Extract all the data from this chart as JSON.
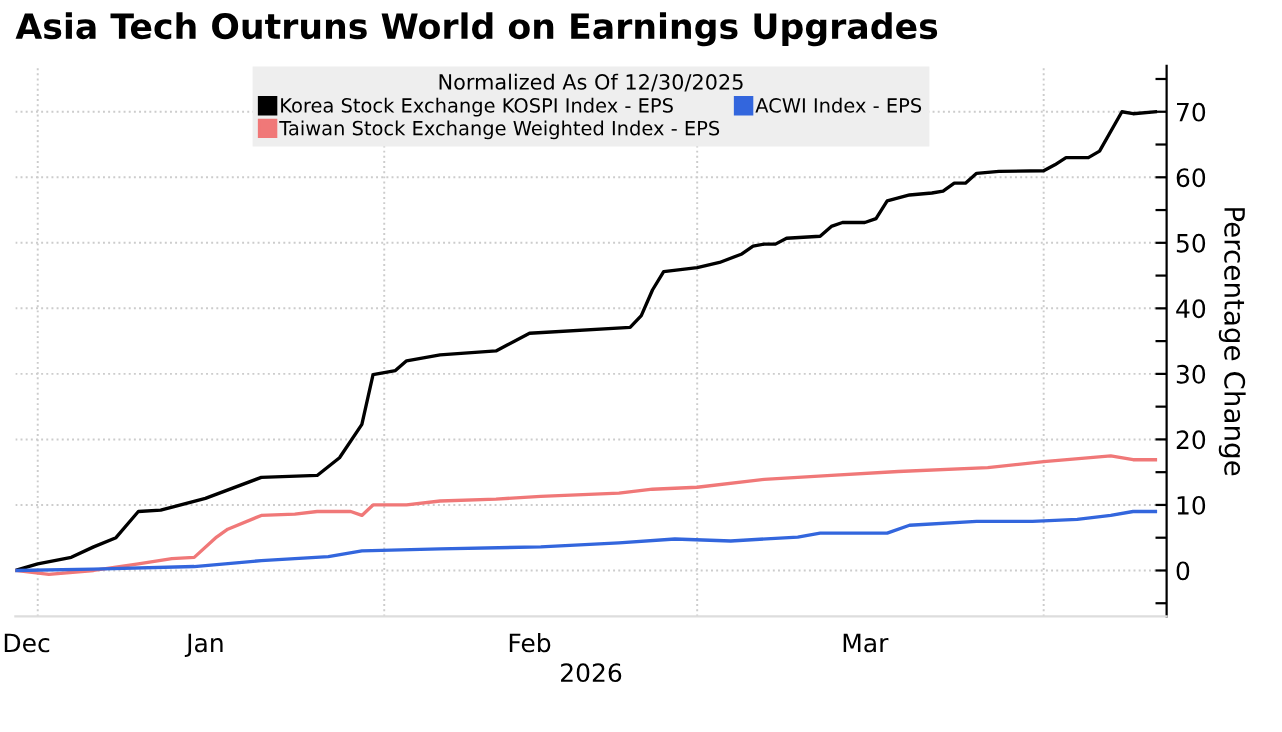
{
  "chart_data": {
    "type": "line",
    "title": "Asia Tech Outruns World on Earnings Upgrades",
    "legend_title": "Normalized As Of 12/30/2025",
    "xlabel": "2026",
    "ylabel": "Percentage Change",
    "series": [
      {
        "name": "Korea Stock Exchange KOSPI Index - EPS",
        "color": "#000000",
        "x": [
          "2025-12-30",
          "2026-01-01",
          "2026-01-04",
          "2026-01-06",
          "2026-01-08",
          "2026-01-10",
          "2026-01-12",
          "2026-01-16",
          "2026-01-21",
          "2026-01-26",
          "2026-01-28",
          "2026-01-30",
          "2026-01-31",
          "2026-02-02",
          "2026-02-03",
          "2026-02-06",
          "2026-02-11",
          "2026-02-12",
          "2026-02-14",
          "2026-02-23",
          "2026-02-24",
          "2026-02-25",
          "2026-02-26",
          "2026-03-01",
          "2026-03-03",
          "2026-03-05",
          "2026-03-06",
          "2026-03-07",
          "2026-03-08",
          "2026-03-09",
          "2026-03-12",
          "2026-03-13",
          "2026-03-14",
          "2026-03-16",
          "2026-03-17",
          "2026-03-18",
          "2026-03-20",
          "2026-03-22",
          "2026-03-23",
          "2026-03-24",
          "2026-03-25",
          "2026-03-26",
          "2026-03-28",
          "2026-04-01",
          "2026-04-02",
          "2026-04-03",
          "2026-04-05",
          "2026-04-06",
          "2026-04-08",
          "2026-04-09",
          "2026-04-11"
        ],
        "values": [
          0,
          1,
          2,
          3.6,
          5,
          9,
          9.2,
          11,
          14.2,
          14.5,
          17.2,
          22.3,
          29.9,
          30.5,
          32,
          32.9,
          33.5,
          34.4,
          36.2,
          37.1,
          38.9,
          42.8,
          45.6,
          46.2,
          47,
          48.3,
          49.5,
          49.8,
          49.8,
          50.7,
          51,
          52.5,
          53.1,
          53.1,
          53.7,
          56.4,
          57.3,
          57.6,
          57.9,
          59.1,
          59.1,
          60.6,
          60.9,
          61,
          61.9,
          63,
          63,
          64,
          70,
          69.7,
          70
        ]
      },
      {
        "name": "Taiwan Stock Exchange Weighted Index - EPS",
        "color": "#f07878",
        "x": [
          "2025-12-30",
          "2026-01-02",
          "2026-01-06",
          "2026-01-10",
          "2026-01-13",
          "2026-01-15",
          "2026-01-17",
          "2026-01-18",
          "2026-01-21",
          "2026-01-24",
          "2026-01-26",
          "2026-01-29",
          "2026-01-30",
          "2026-01-31",
          "2026-02-03",
          "2026-02-06",
          "2026-02-11",
          "2026-02-15",
          "2026-02-22",
          "2026-02-25",
          "2026-03-01",
          "2026-03-07",
          "2026-03-13",
          "2026-03-19",
          "2026-03-27",
          "2026-04-01",
          "2026-04-07",
          "2026-04-09",
          "2026-04-11"
        ],
        "values": [
          0,
          -0.6,
          0,
          1,
          1.8,
          2,
          5.1,
          6.3,
          8.4,
          8.6,
          9,
          9,
          8.4,
          10,
          10,
          10.6,
          10.9,
          11.3,
          11.8,
          12.4,
          12.7,
          13.9,
          14.5,
          15.1,
          15.7,
          16.6,
          17.5,
          16.9,
          16.9
        ]
      },
      {
        "name": "ACWI Index - EPS",
        "color": "#3366dd",
        "x": [
          "2025-12-30",
          "2026-01-06",
          "2026-01-15",
          "2026-01-21",
          "2026-01-27",
          "2026-01-30",
          "2026-02-06",
          "2026-02-15",
          "2026-02-22",
          "2026-02-27",
          "2026-03-04",
          "2026-03-10",
          "2026-03-12",
          "2026-03-18",
          "2026-03-20",
          "2026-03-26",
          "2026-03-31",
          "2026-04-04",
          "2026-04-07",
          "2026-04-09",
          "2026-04-11"
        ],
        "values": [
          0,
          0.2,
          0.6,
          1.5,
          2.1,
          3,
          3.3,
          3.6,
          4.2,
          4.8,
          4.5,
          5.1,
          5.7,
          5.7,
          6.9,
          7.5,
          7.5,
          7.8,
          8.4,
          9,
          9
        ]
      }
    ],
    "xlim": [
      "2025-12-30",
      "2026-04-12"
    ],
    "xticks": [
      {
        "value": "2025-12-31",
        "label": "Dec"
      },
      {
        "value": "2026-01-01",
        "label": null
      },
      {
        "value": "2026-01-16",
        "label": "Jan"
      },
      {
        "value": "2026-02-01",
        "label": null
      },
      {
        "value": "2026-02-14",
        "label": "Feb"
      },
      {
        "value": "2026-03-01",
        "label": null
      },
      {
        "value": "2026-03-16",
        "label": "Mar"
      },
      {
        "value": "2026-04-01",
        "label": null
      }
    ],
    "ylim": [
      -7,
      77
    ],
    "yticks": [
      {
        "value": -5,
        "label": null
      },
      0,
      {
        "value": 5,
        "label": null
      },
      10,
      {
        "value": 15,
        "label": null
      },
      20,
      {
        "value": 25,
        "label": null
      },
      30,
      {
        "value": 35,
        "label": null
      },
      40,
      {
        "value": 45,
        "label": null
      },
      50,
      {
        "value": 55,
        "label": null
      },
      60,
      {
        "value": 65,
        "label": null
      },
      70,
      {
        "value": 75,
        "label": null
      }
    ],
    "grid": true,
    "legend": "top",
    "marker": "none",
    "line_style": "solid"
  }
}
